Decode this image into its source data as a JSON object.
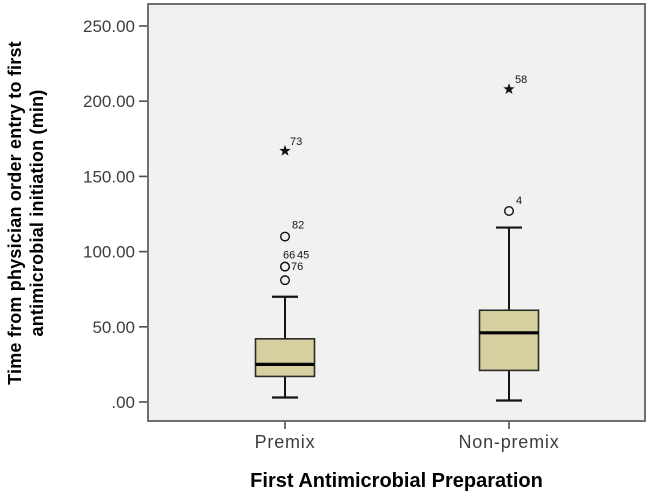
{
  "figure": {
    "kind": "boxplot",
    "x_axis_title": "First Antimicrobial Preparation",
    "y_axis_title_line1": "Time from physician order entry to first",
    "y_axis_title_line2": "antimicrobial initiation (min)"
  },
  "colors": {
    "plot_background": "#f1f1ef",
    "frame_border": "#6f6f6f",
    "box_fill": "#d6cfa0",
    "box_border": "#2b2b2b",
    "whisker": "#141414",
    "median": "#050505",
    "tick_mark": "#4d4d4d",
    "tick_text": "#3d3d3d",
    "outlier_marker": "#111111",
    "outlier_text": "#141414"
  },
  "chart_data": {
    "type": "boxplot",
    "title": "",
    "xlabel": "First Antimicrobial Preparation",
    "ylabel_lines": [
      "Time from physician order entry to first",
      "antimicrobial initiation (min)"
    ],
    "ylabel": "Time from physician order entry to first antimicrobial initiation (min)",
    "categories": [
      "Premix",
      "Non-premix"
    ],
    "y_axis": {
      "range": [
        -13.3,
        265.3
      ],
      "grid": false,
      "ticks": [
        {
          "value": 0,
          "label": ".00"
        },
        {
          "value": 50,
          "label": "50.00"
        },
        {
          "value": 100,
          "label": "100.00"
        },
        {
          "value": 150,
          "label": "150.00"
        },
        {
          "value": 200,
          "label": "200.00"
        },
        {
          "value": 250,
          "label": "250.00"
        }
      ]
    },
    "series": [
      {
        "category": "Premix",
        "whisker_low": 3,
        "q1": 17,
        "median": 25,
        "q3": 42,
        "whisker_high": 70,
        "outliers": [
          {
            "value": 110,
            "label": "82",
            "marker": "circle",
            "dx": 7,
            "dy": -8
          },
          {
            "value": 90,
            "label": "66",
            "marker": "circle",
            "dx": -2,
            "dy": -8
          },
          {
            "value": 90,
            "label": "45",
            "marker": "circle",
            "dx": 12,
            "dy": -8
          },
          {
            "value": 81,
            "label": "76",
            "marker": "circle",
            "dx": 6,
            "dy": -10
          },
          {
            "value": 167,
            "label": "73",
            "marker": "star",
            "dx": 5,
            "dy": -6
          }
        ]
      },
      {
        "category": "Non-premix",
        "whisker_low": 1,
        "q1": 21,
        "median": 46,
        "q3": 61,
        "whisker_high": 116,
        "outliers": [
          {
            "value": 127,
            "label": "4",
            "marker": "circle",
            "dx": 7,
            "dy": -7
          },
          {
            "value": 208,
            "label": "58",
            "marker": "star",
            "dx": 6,
            "dy": -6
          }
        ]
      }
    ]
  }
}
